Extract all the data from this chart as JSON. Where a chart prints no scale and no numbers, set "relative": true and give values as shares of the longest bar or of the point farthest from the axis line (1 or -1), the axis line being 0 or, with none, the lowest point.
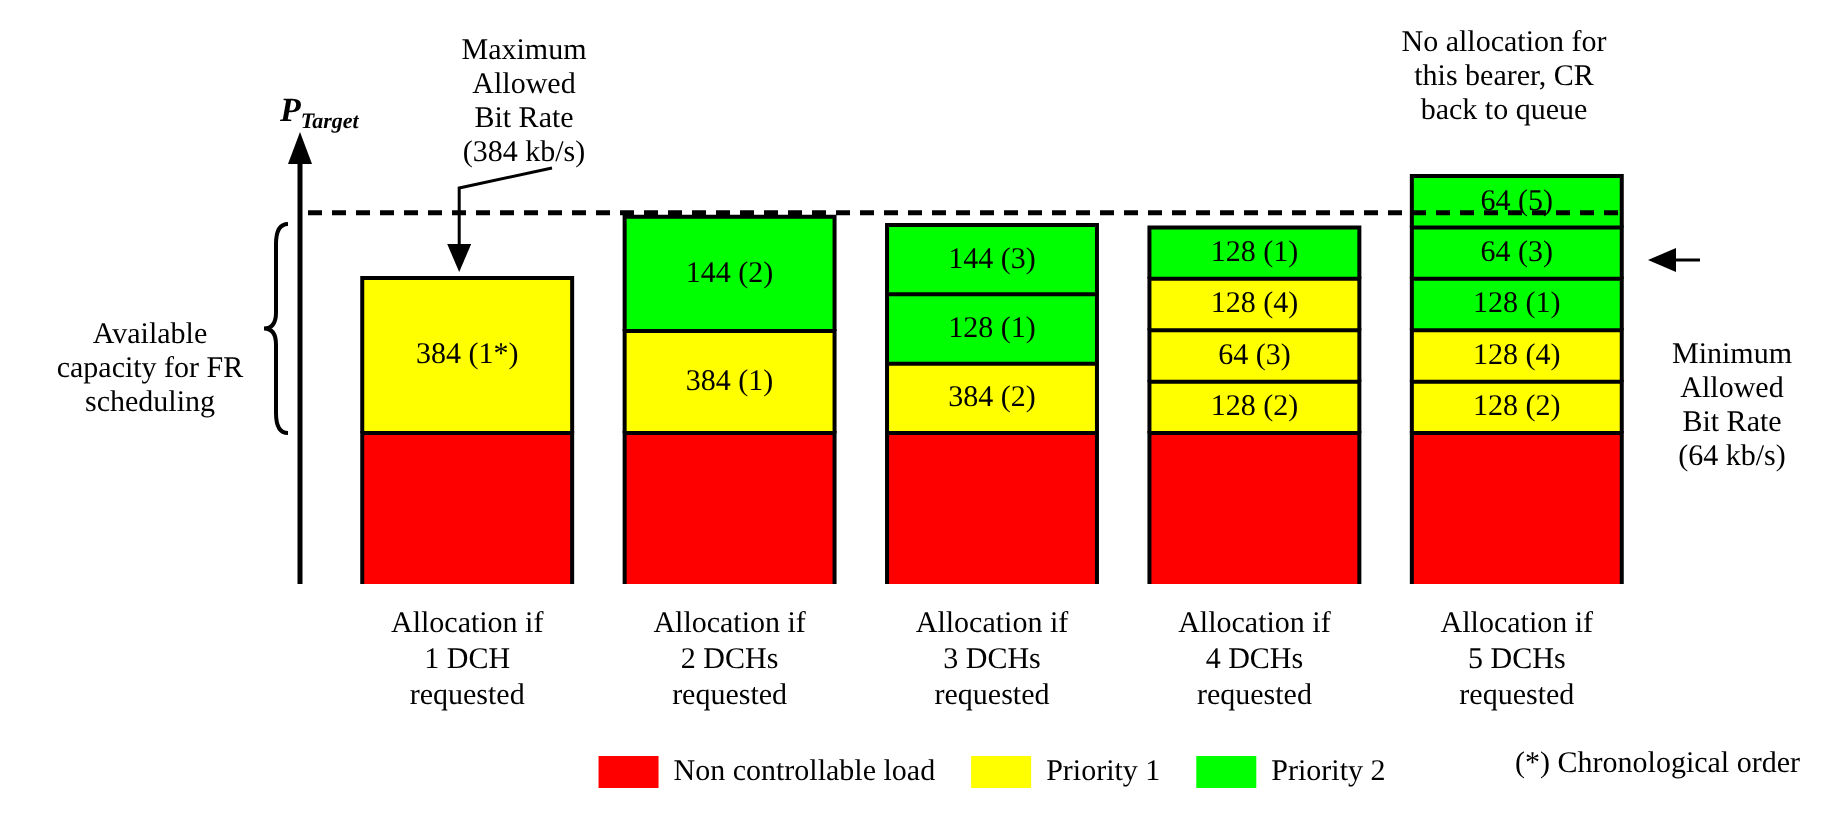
{
  "chart_data": {
    "type": "bar",
    "stacked": true,
    "relative": true,
    "ylabel": "P$_{Target}$",
    "categories": [
      "Allocation if 1 DCH requested",
      "Allocation if 2 DCHs requested",
      "Allocation if 3 DCHs requested",
      "Allocation if 4 DCHs requested",
      "Allocation if 5 DCHs requested"
    ],
    "series": [
      {
        "name": "Non controllable load",
        "color": "#ff0000",
        "values": [
          0.37,
          0.37,
          0.37,
          0.37,
          0.37
        ]
      },
      {
        "name": "Priority 1",
        "color": "#ffff00",
        "values": [
          0.38,
          0.25,
          0.17,
          0.126,
          0.126
        ]
      },
      {
        "color": "#ffff00",
        "values": [
          null,
          null,
          null,
          0.126,
          0.126
        ]
      },
      {
        "color": "#ffff00",
        "values": [
          null,
          null,
          null,
          0.126,
          null
        ]
      },
      {
        "name": "Priority 2",
        "color": "#00ff00",
        "values": [
          null,
          0.28,
          0.17,
          0.126,
          0.126
        ]
      },
      {
        "color": "#00ff00",
        "values": [
          null,
          null,
          0.17,
          null,
          0.126
        ]
      },
      {
        "color": "#00ff00",
        "values": [
          null,
          null,
          null,
          null,
          0.126
        ]
      }
    ],
    "ref_lines": [
      {
        "axis": "y",
        "value": 0.91,
        "line_style": "dashed",
        "color": "#000000"
      }
    ],
    "annotations": [
      "Maximum Allowed Bit Rate (384 kb/s)",
      "No allocation for this bearer, CR back to queue",
      "Available capacity for FR scheduling",
      "Minimum Allowed Bit Rate (64 kb/s)",
      "(*) Chronological order",
      "384 (1*)",
      "384 (1)",
      "144 (2)",
      "384 (2)",
      "128 (1)",
      "144 (3)",
      "128 (2)",
      "64 (3)",
      "128 (4)",
      "128 (1)",
      "128 (2)",
      "128 (4)",
      "128 (1)",
      "64 (3)",
      "64 (5)"
    ],
    "legend": "bottom",
    "grid": false
  }
}
